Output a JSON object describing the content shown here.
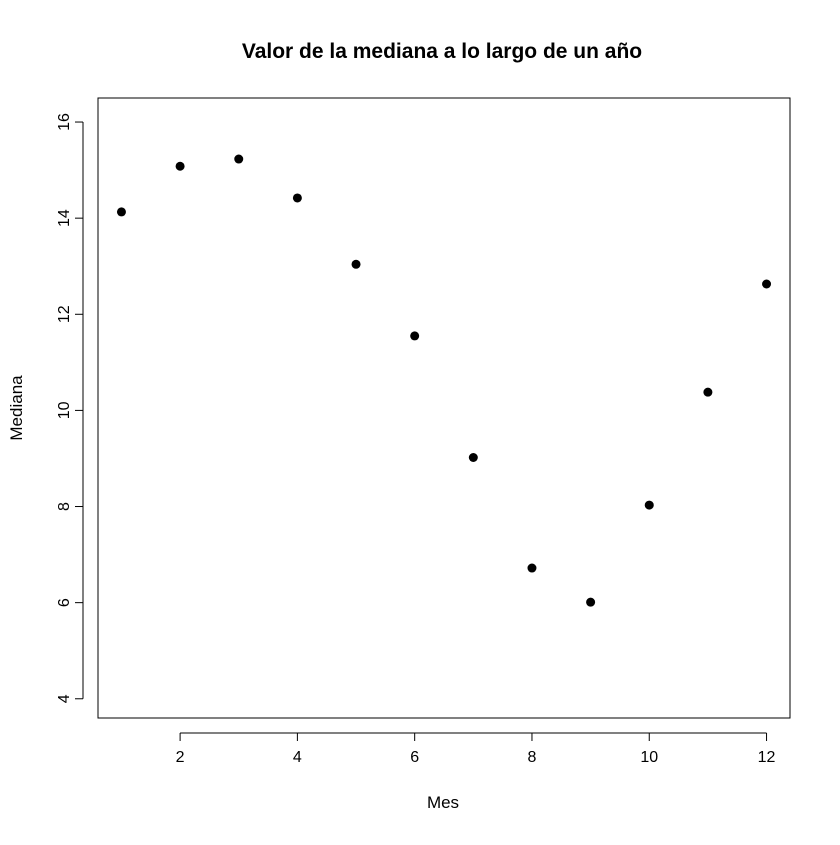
{
  "chart_data": {
    "type": "scatter",
    "title": "Valor de la mediana a lo largo de un año",
    "xlabel": "Mes",
    "ylabel": "Mediana",
    "xlim": [
      0.6,
      12.4
    ],
    "ylim": [
      3.6,
      16.5
    ],
    "x_ticks": [
      2,
      4,
      6,
      8,
      10,
      12
    ],
    "y_ticks": [
      4,
      6,
      8,
      10,
      12,
      14,
      16
    ],
    "grid": false,
    "legend": "none",
    "point_color": "#000000",
    "series": [
      {
        "x": [
          1,
          2,
          3,
          4,
          5,
          6,
          7,
          8,
          9,
          10,
          11,
          12
        ],
        "y": [
          14.13,
          15.08,
          15.23,
          14.42,
          13.04,
          11.55,
          9.02,
          6.72,
          6.01,
          8.03,
          10.38,
          12.63
        ]
      }
    ]
  }
}
